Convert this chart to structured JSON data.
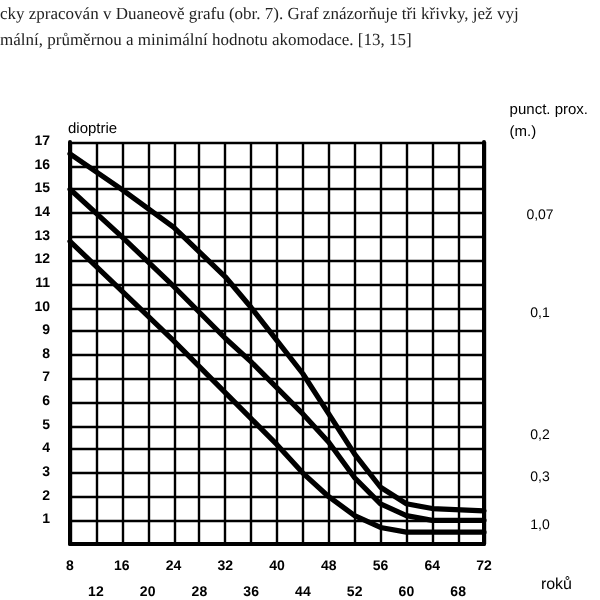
{
  "chart_data": {
    "type": "line",
    "ylabel": "dioptrie",
    "y2label": "punct. prox. (m.)",
    "xlabel": "roků",
    "annotations": [
      "cky zpracován v Duaneově grafu (obr. 7). Graf znázorňuje tři křivky, jež vyj",
      "mální, průměrnou a minimální hodnotu akomodace. [13, 15]",
      "0,07",
      "0,1",
      "0,2",
      "0,3",
      "1,0"
    ],
    "x": [
      8,
      16,
      24,
      32,
      36,
      40,
      44,
      48,
      52,
      56,
      60,
      64,
      72
    ],
    "series": [
      {
        "color": "#000000",
        "values": [
          16.5,
          15.0,
          13.4,
          11.3,
          10.0,
          8.6,
          7.2,
          5.5,
          3.8,
          2.4,
          1.7,
          1.5,
          1.4
        ]
      },
      {
        "color": "#000000",
        "values": [
          15.0,
          13.0,
          10.9,
          8.7,
          7.7,
          6.6,
          5.5,
          4.3,
          2.8,
          1.7,
          1.2,
          1.0,
          1.0
        ]
      },
      {
        "color": "#000000",
        "values": [
          12.8,
          10.7,
          8.6,
          6.4,
          5.3,
          4.2,
          3.0,
          2.0,
          1.2,
          0.7,
          0.5,
          0.5,
          0.5
        ]
      }
    ],
    "xlim": [
      8,
      72
    ],
    "xticks": [
      8,
      16,
      24,
      32,
      40,
      48,
      56,
      64,
      72
    ],
    "x2lim": [
      8,
      72
    ],
    "x2ticks": [
      12,
      20,
      28,
      36,
      44,
      52,
      60,
      68
    ],
    "ylim": [
      0,
      17
    ],
    "yticks": [
      1,
      2,
      3,
      4,
      5,
      6,
      7,
      8,
      9,
      10,
      11,
      12,
      13,
      14,
      15,
      16,
      17
    ],
    "grid": true,
    "marker": "none",
    "line_style": "solid"
  }
}
